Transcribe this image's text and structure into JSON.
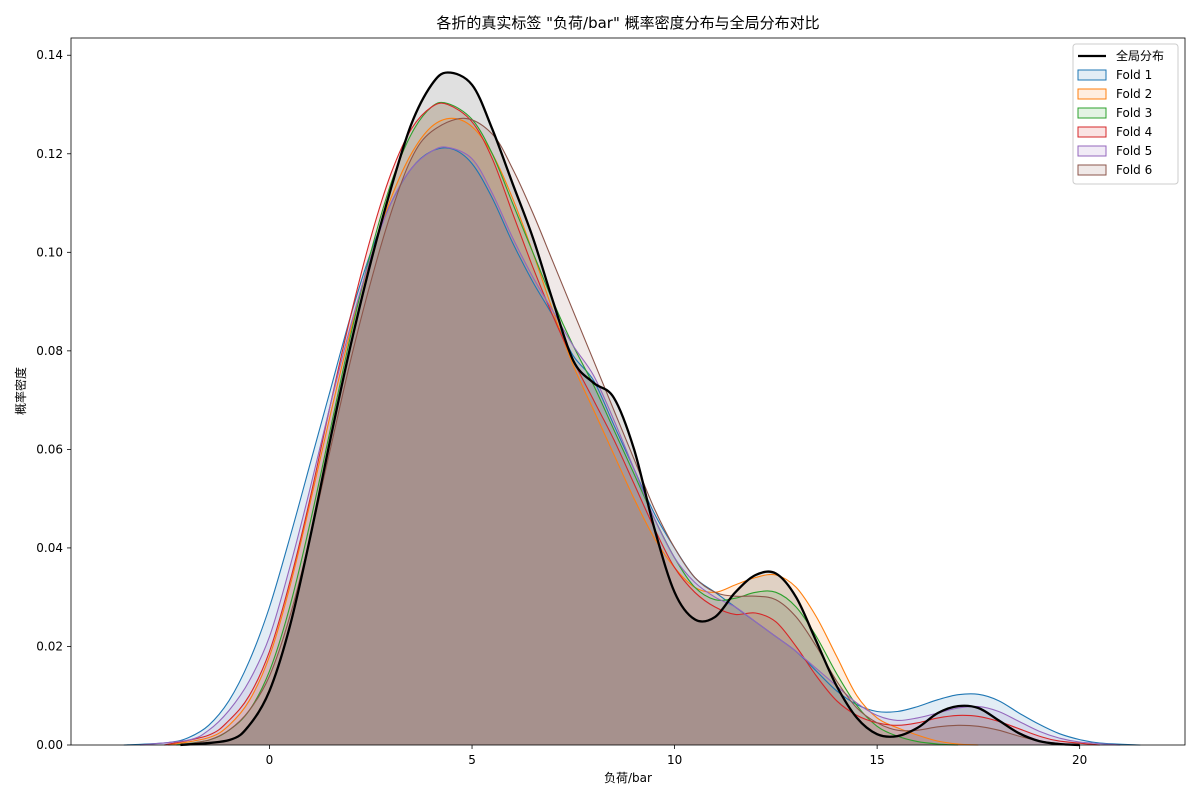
{
  "chart_data": {
    "type": "area",
    "title": "各折的真实标签 \"负荷/bar\" 概率密度分布与全局分布对比",
    "xlabel": "负荷/bar",
    "ylabel": "概率密度",
    "xlim": [
      -4.9,
      22.6
    ],
    "ylim": [
      0,
      0.1435
    ],
    "x_ticks": [
      0,
      5,
      10,
      15,
      20
    ],
    "y_ticks": [
      0.0,
      0.02,
      0.04,
      0.06,
      0.08,
      0.1,
      0.12,
      0.14
    ],
    "y_tick_labels": [
      "0.00",
      "0.02",
      "0.04",
      "0.06",
      "0.08",
      "0.10",
      "0.12",
      "0.14"
    ],
    "grid": false,
    "legend_position": "top-right",
    "global": {
      "name": "全局分布",
      "color": "#000000",
      "points": [
        [
          -2.2,
          0.0
        ],
        [
          -1.0,
          0.001
        ],
        [
          -0.5,
          0.004
        ],
        [
          0,
          0.011
        ],
        [
          0.5,
          0.024
        ],
        [
          1,
          0.042
        ],
        [
          1.5,
          0.062
        ],
        [
          2,
          0.081
        ],
        [
          2.5,
          0.098
        ],
        [
          3,
          0.113
        ],
        [
          3.5,
          0.126
        ],
        [
          4,
          0.134
        ],
        [
          4.4,
          0.1365
        ],
        [
          5,
          0.134
        ],
        [
          5.5,
          0.125
        ],
        [
          6,
          0.114
        ],
        [
          6.5,
          0.103
        ],
        [
          7,
          0.09
        ],
        [
          7.5,
          0.078
        ],
        [
          8,
          0.0735
        ],
        [
          8.5,
          0.0705
        ],
        [
          9,
          0.06
        ],
        [
          9.5,
          0.044
        ],
        [
          10,
          0.031
        ],
        [
          10.5,
          0.0255
        ],
        [
          11,
          0.026
        ],
        [
          11.5,
          0.031
        ],
        [
          12,
          0.0345
        ],
        [
          12.5,
          0.0348
        ],
        [
          13,
          0.03
        ],
        [
          13.5,
          0.021
        ],
        [
          14,
          0.012
        ],
        [
          14.5,
          0.0055
        ],
        [
          15,
          0.0022
        ],
        [
          15.5,
          0.0018
        ],
        [
          16,
          0.0035
        ],
        [
          16.5,
          0.0065
        ],
        [
          17,
          0.0079
        ],
        [
          17.5,
          0.0075
        ],
        [
          18,
          0.005
        ],
        [
          18.5,
          0.0024
        ],
        [
          19,
          0.0008
        ],
        [
          19.5,
          0.0002
        ],
        [
          20,
          0.0
        ]
      ]
    },
    "series": [
      {
        "name": "Fold 1",
        "color": "#1f77b4",
        "points": [
          [
            -3.6,
            0.0
          ],
          [
            -2.5,
            0.0005
          ],
          [
            -2,
            0.0015
          ],
          [
            -1.5,
            0.004
          ],
          [
            -1,
            0.009
          ],
          [
            -0.5,
            0.017
          ],
          [
            0,
            0.028
          ],
          [
            0.5,
            0.042
          ],
          [
            1,
            0.057
          ],
          [
            1.5,
            0.072
          ],
          [
            2,
            0.087
          ],
          [
            2.5,
            0.1
          ],
          [
            3,
            0.11
          ],
          [
            3.5,
            0.117
          ],
          [
            4,
            0.1205
          ],
          [
            4.5,
            0.121
          ],
          [
            5,
            0.118
          ],
          [
            5.5,
            0.111
          ],
          [
            6,
            0.102
          ],
          [
            6.5,
            0.094
          ],
          [
            7,
            0.087
          ],
          [
            7.5,
            0.079
          ],
          [
            8,
            0.074
          ],
          [
            8.5,
            0.065
          ],
          [
            9,
            0.056
          ],
          [
            9.5,
            0.047
          ],
          [
            10,
            0.04
          ],
          [
            10.5,
            0.034
          ],
          [
            11,
            0.031
          ],
          [
            11.5,
            0.028
          ],
          [
            12,
            0.025
          ],
          [
            12.5,
            0.022
          ],
          [
            13,
            0.019
          ],
          [
            13.5,
            0.015
          ],
          [
            14,
            0.011
          ],
          [
            14.5,
            0.0082
          ],
          [
            15,
            0.0068
          ],
          [
            15.5,
            0.0068
          ],
          [
            16,
            0.0078
          ],
          [
            16.5,
            0.0092
          ],
          [
            17,
            0.0102
          ],
          [
            17.5,
            0.0103
          ],
          [
            18,
            0.009
          ],
          [
            18.5,
            0.0065
          ],
          [
            19,
            0.0042
          ],
          [
            19.5,
            0.0023
          ],
          [
            20,
            0.0011
          ],
          [
            20.5,
            0.0004
          ],
          [
            21.5,
            0.0
          ]
        ]
      },
      {
        "name": "Fold 2",
        "color": "#ff7f0e",
        "points": [
          [
            -2.5,
            0.0
          ],
          [
            -1.5,
            0.0015
          ],
          [
            -1,
            0.004
          ],
          [
            -0.5,
            0.009
          ],
          [
            0,
            0.018
          ],
          [
            0.5,
            0.032
          ],
          [
            1,
            0.049
          ],
          [
            1.5,
            0.067
          ],
          [
            2,
            0.084
          ],
          [
            2.5,
            0.099
          ],
          [
            3,
            0.111
          ],
          [
            3.5,
            0.12
          ],
          [
            4,
            0.1255
          ],
          [
            4.5,
            0.1272
          ],
          [
            5,
            0.1255
          ],
          [
            5.5,
            0.12
          ],
          [
            6,
            0.111
          ],
          [
            6.5,
            0.1
          ],
          [
            7,
            0.088
          ],
          [
            7.5,
            0.077
          ],
          [
            8,
            0.068
          ],
          [
            8.5,
            0.059
          ],
          [
            9,
            0.05
          ],
          [
            9.5,
            0.042
          ],
          [
            10,
            0.036
          ],
          [
            10.5,
            0.032
          ],
          [
            11,
            0.031
          ],
          [
            11.5,
            0.0325
          ],
          [
            12,
            0.034
          ],
          [
            12.5,
            0.0345
          ],
          [
            13,
            0.032
          ],
          [
            13.5,
            0.026
          ],
          [
            14,
            0.018
          ],
          [
            14.5,
            0.01
          ],
          [
            15,
            0.0055
          ],
          [
            15.5,
            0.0035
          ],
          [
            16,
            0.002
          ],
          [
            16.5,
            0.0008
          ],
          [
            17,
            0.0002
          ],
          [
            17.5,
            0.0
          ]
        ]
      },
      {
        "name": "Fold 3",
        "color": "#2ca02c",
        "points": [
          [
            -2.3,
            0.0
          ],
          [
            -1.5,
            0.001
          ],
          [
            -1,
            0.003
          ],
          [
            -0.5,
            0.007
          ],
          [
            0,
            0.015
          ],
          [
            0.5,
            0.028
          ],
          [
            1,
            0.045
          ],
          [
            1.5,
            0.064
          ],
          [
            2,
            0.083
          ],
          [
            2.5,
            0.1
          ],
          [
            3,
            0.114
          ],
          [
            3.5,
            0.124
          ],
          [
            4,
            0.1295
          ],
          [
            4.4,
            0.1302
          ],
          [
            5,
            0.127
          ],
          [
            5.5,
            0.12
          ],
          [
            6,
            0.11
          ],
          [
            6.5,
            0.1
          ],
          [
            7,
            0.09
          ],
          [
            7.5,
            0.081
          ],
          [
            8,
            0.073
          ],
          [
            8.5,
            0.064
          ],
          [
            9,
            0.055
          ],
          [
            9.5,
            0.046
          ],
          [
            10,
            0.038
          ],
          [
            10.5,
            0.032
          ],
          [
            11,
            0.0295
          ],
          [
            11.5,
            0.0298
          ],
          [
            12,
            0.031
          ],
          [
            12.5,
            0.031
          ],
          [
            13,
            0.028
          ],
          [
            13.5,
            0.022
          ],
          [
            14,
            0.0145
          ],
          [
            14.5,
            0.008
          ],
          [
            15,
            0.0038
          ],
          [
            15.5,
            0.0018
          ],
          [
            16,
            0.0007
          ],
          [
            16.5,
            0.0002
          ],
          [
            17,
            0.0
          ]
        ]
      },
      {
        "name": "Fold 4",
        "color": "#d62728",
        "points": [
          [
            -2.6,
            0.0
          ],
          [
            -1.5,
            0.002
          ],
          [
            -1,
            0.005
          ],
          [
            -0.5,
            0.01
          ],
          [
            0,
            0.019
          ],
          [
            0.5,
            0.033
          ],
          [
            1,
            0.05
          ],
          [
            1.5,
            0.069
          ],
          [
            2,
            0.087
          ],
          [
            2.5,
            0.103
          ],
          [
            3,
            0.116
          ],
          [
            3.5,
            0.125
          ],
          [
            4,
            0.1295
          ],
          [
            4.4,
            0.13
          ],
          [
            5,
            0.1265
          ],
          [
            5.5,
            0.119
          ],
          [
            6,
            0.108
          ],
          [
            6.5,
            0.097
          ],
          [
            7,
            0.087
          ],
          [
            7.5,
            0.078
          ],
          [
            8,
            0.07
          ],
          [
            8.5,
            0.062
          ],
          [
            9,
            0.053
          ],
          [
            9.5,
            0.044
          ],
          [
            10,
            0.036
          ],
          [
            10.5,
            0.031
          ],
          [
            11,
            0.028
          ],
          [
            11.5,
            0.0265
          ],
          [
            12,
            0.0268
          ],
          [
            12.5,
            0.025
          ],
          [
            13,
            0.02
          ],
          [
            13.5,
            0.014
          ],
          [
            14,
            0.009
          ],
          [
            14.5,
            0.006
          ],
          [
            15,
            0.0045
          ],
          [
            15.5,
            0.004
          ],
          [
            16,
            0.0045
          ],
          [
            16.5,
            0.0055
          ],
          [
            17,
            0.006
          ],
          [
            17.5,
            0.0058
          ],
          [
            18,
            0.0048
          ],
          [
            18.5,
            0.0033
          ],
          [
            19,
            0.0018
          ],
          [
            19.5,
            0.0008
          ],
          [
            20.5,
            0.0
          ]
        ]
      },
      {
        "name": "Fold 5",
        "color": "#9467bd",
        "points": [
          [
            -3.2,
            0.0
          ],
          [
            -2,
            0.001
          ],
          [
            -1.5,
            0.003
          ],
          [
            -1,
            0.007
          ],
          [
            -0.5,
            0.013
          ],
          [
            0,
            0.022
          ],
          [
            0.5,
            0.036
          ],
          [
            1,
            0.052
          ],
          [
            1.5,
            0.069
          ],
          [
            2,
            0.085
          ],
          [
            2.5,
            0.099
          ],
          [
            3,
            0.11
          ],
          [
            3.5,
            0.117
          ],
          [
            4,
            0.1205
          ],
          [
            4.4,
            0.1213
          ],
          [
            5,
            0.119
          ],
          [
            5.5,
            0.112
          ],
          [
            6,
            0.103
          ],
          [
            6.5,
            0.095
          ],
          [
            7,
            0.088
          ],
          [
            7.5,
            0.081
          ],
          [
            8,
            0.075
          ],
          [
            8.5,
            0.066
          ],
          [
            9,
            0.056
          ],
          [
            9.5,
            0.046
          ],
          [
            10,
            0.038
          ],
          [
            10.5,
            0.033
          ],
          [
            11,
            0.03
          ],
          [
            11.5,
            0.028
          ],
          [
            12,
            0.025
          ],
          [
            12.5,
            0.022
          ],
          [
            13,
            0.019
          ],
          [
            13.5,
            0.0155
          ],
          [
            14,
            0.012
          ],
          [
            14.5,
            0.0085
          ],
          [
            15,
            0.006
          ],
          [
            15.5,
            0.005
          ],
          [
            16,
            0.0055
          ],
          [
            16.5,
            0.0065
          ],
          [
            17,
            0.0075
          ],
          [
            17.5,
            0.0078
          ],
          [
            18,
            0.0068
          ],
          [
            18.5,
            0.0048
          ],
          [
            19,
            0.0028
          ],
          [
            19.5,
            0.0014
          ],
          [
            20,
            0.0006
          ],
          [
            21,
            0.0
          ]
        ]
      },
      {
        "name": "Fold 6",
        "color": "#8c564b",
        "points": [
          [
            -2.2,
            0.0
          ],
          [
            -1.5,
            0.001
          ],
          [
            -1,
            0.003
          ],
          [
            -0.5,
            0.007
          ],
          [
            0,
            0.014
          ],
          [
            0.5,
            0.026
          ],
          [
            1,
            0.042
          ],
          [
            1.5,
            0.06
          ],
          [
            2,
            0.078
          ],
          [
            2.5,
            0.094
          ],
          [
            3,
            0.108
          ],
          [
            3.5,
            0.119
          ],
          [
            4,
            0.1245
          ],
          [
            4.8,
            0.1272
          ],
          [
            5.5,
            0.124
          ],
          [
            6,
            0.117
          ],
          [
            6.5,
            0.108
          ],
          [
            7,
            0.098
          ],
          [
            7.5,
            0.088
          ],
          [
            8,
            0.078
          ],
          [
            8.5,
            0.068
          ],
          [
            9,
            0.058
          ],
          [
            9.5,
            0.048
          ],
          [
            10,
            0.04
          ],
          [
            10.5,
            0.034
          ],
          [
            11,
            0.031
          ],
          [
            11.5,
            0.0302
          ],
          [
            12,
            0.0302
          ],
          [
            12.5,
            0.0295
          ],
          [
            13,
            0.026
          ],
          [
            13.5,
            0.02
          ],
          [
            14,
            0.013
          ],
          [
            14.5,
            0.0075
          ],
          [
            15,
            0.0045
          ],
          [
            15.5,
            0.003
          ],
          [
            16,
            0.003
          ],
          [
            16.5,
            0.0037
          ],
          [
            17,
            0.004
          ],
          [
            17.5,
            0.0038
          ],
          [
            18,
            0.003
          ],
          [
            18.5,
            0.0018
          ],
          [
            19,
            0.0008
          ],
          [
            19.5,
            0.0003
          ],
          [
            20,
            0.0
          ]
        ]
      }
    ]
  }
}
